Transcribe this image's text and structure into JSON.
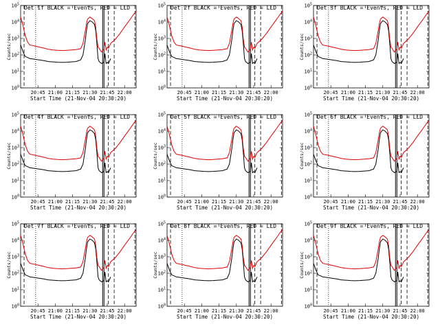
{
  "colors": {
    "events": "#000000",
    "lld": "#e00000",
    "axis": "#000000",
    "background": "#ffffff"
  },
  "chart_data": [
    {
      "type": "line",
      "title": "Det 1f BLACK = Events, RED = LLD",
      "detector": "1f"
    },
    {
      "type": "line",
      "title": "Det 2f BLACK = Events, RED = LLD",
      "detector": "2f"
    },
    {
      "type": "line",
      "title": "Det 3f BLACK = Events, RED = LLD",
      "detector": "3f"
    },
    {
      "type": "line",
      "title": "Det 4f BLACK = Events, RED = LLD",
      "detector": "4f"
    },
    {
      "type": "line",
      "title": "Det 5f BLACK = Events, RED = LLD",
      "detector": "5f"
    },
    {
      "type": "line",
      "title": "Det 6f BLACK = Events, RED = LLD",
      "detector": "6f"
    },
    {
      "type": "line",
      "title": "Det 7f BLACK = Events, RED = LLD",
      "detector": "7f"
    },
    {
      "type": "line",
      "title": "Det 8f BLACK = Events, RED = LLD",
      "detector": "8f"
    },
    {
      "type": "line",
      "title": "Det 9f BLACK = Events, RED = LLD",
      "detector": "9f"
    }
  ],
  "shared": {
    "xlabel": "Start Time (21-Nov-04 20:30:20)",
    "ylabel": "Counts/sec",
    "x_ticks": [
      "20:45",
      "21:00",
      "21:15",
      "21:30",
      "21:45",
      "22:00"
    ],
    "x_tick_minutes": [
      15,
      30,
      45,
      60,
      75,
      90
    ],
    "xlim_minutes": [
      0,
      100
    ],
    "y_scale": "log",
    "ylim": [
      1,
      100000
    ],
    "y_ticks": [
      "10^0",
      "10^1",
      "10^2",
      "10^3",
      "10^4",
      "10^5"
    ],
    "y_tick_values": [
      1,
      10,
      100,
      1000,
      10000,
      100000
    ],
    "series": [
      {
        "name": "Events",
        "color": "#000000",
        "x": [
          0,
          2,
          4,
          6,
          8,
          12,
          16,
          20,
          24,
          28,
          32,
          36,
          40,
          44,
          48,
          52,
          54,
          56,
          57,
          58,
          60,
          62,
          64,
          65,
          66,
          67,
          68,
          70,
          72,
          73,
          74,
          75,
          76,
          78
        ],
        "y": [
          400,
          160,
          80,
          70,
          60,
          55,
          50,
          45,
          40,
          38,
          36,
          35,
          36,
          38,
          40,
          50,
          100,
          800,
          3000,
          8000,
          12000,
          10000,
          7000,
          3000,
          500,
          60,
          40,
          30,
          35,
          120,
          30,
          35,
          30,
          60
        ]
      },
      {
        "name": "LLD",
        "color": "#e00000",
        "x": [
          0,
          2,
          4,
          6,
          8,
          12,
          16,
          20,
          24,
          28,
          32,
          36,
          40,
          44,
          48,
          52,
          54,
          56,
          57,
          58,
          60,
          62,
          64,
          65,
          66,
          67,
          68,
          70,
          72,
          73,
          74,
          75,
          76,
          78,
          82,
          86,
          90,
          94,
          98,
          100
        ],
        "y": [
          20000,
          6000,
          1500,
          600,
          400,
          350,
          300,
          260,
          220,
          200,
          190,
          185,
          190,
          200,
          210,
          240,
          500,
          3000,
          8000,
          15000,
          20000,
          16000,
          12000,
          5000,
          900,
          300,
          250,
          150,
          220,
          600,
          200,
          300,
          250,
          500,
          900,
          2000,
          5000,
          12000,
          30000,
          45000
        ]
      }
    ],
    "markers": {
      "dotted_minutes": [
        13
      ],
      "solid_minutes": [
        71,
        72.2
      ],
      "dashed_minutes": [
        3,
        76,
        81,
        99
      ]
    }
  }
}
